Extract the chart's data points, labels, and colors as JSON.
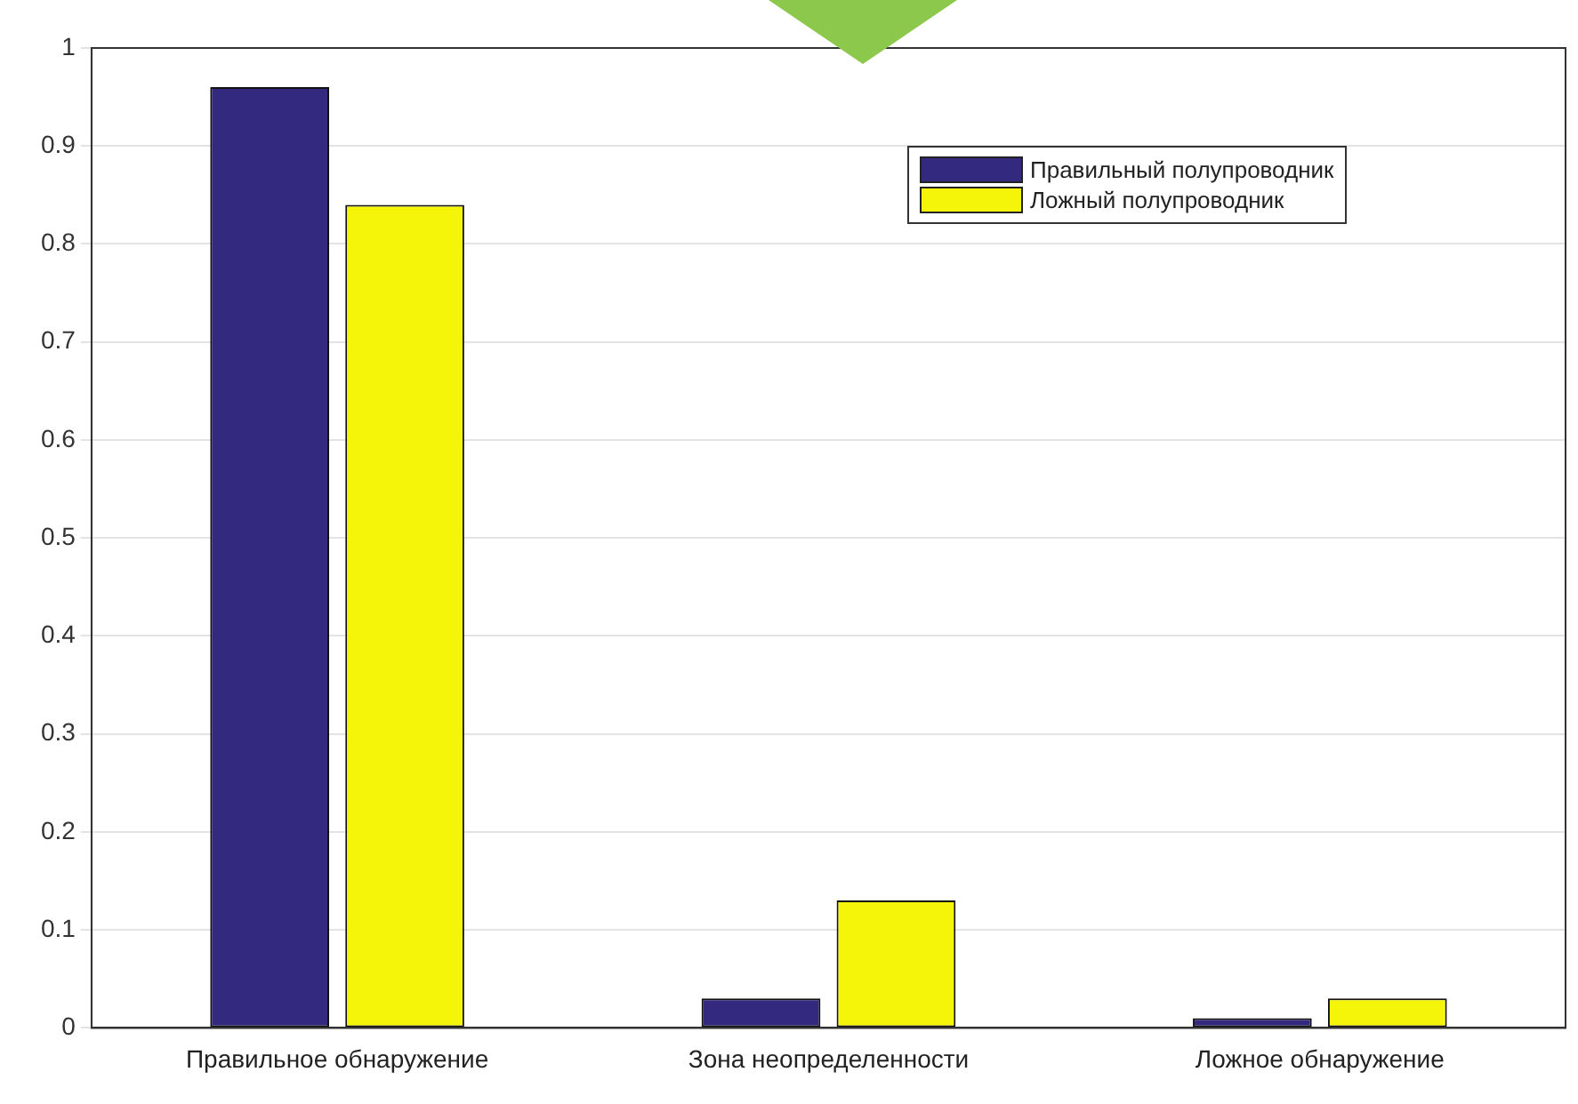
{
  "chart_data": {
    "type": "bar",
    "categories": [
      "Правильное обнаружение",
      "Зона неопределенности",
      "Ложное обнаружение"
    ],
    "series": [
      {
        "name": "Правильный полупроводник",
        "color": "#332a80",
        "values": [
          0.96,
          0.03,
          0.01
        ]
      },
      {
        "name": "Ложный полупроводник",
        "color": "#f5f50a",
        "values": [
          0.84,
          0.13,
          0.03
        ]
      }
    ],
    "ylim": [
      0,
      1
    ],
    "yticks": [
      0,
      0.1,
      0.2,
      0.3,
      0.4,
      0.5,
      0.6,
      0.7,
      0.8,
      0.9,
      1
    ],
    "grid": "y",
    "legend": "top right"
  }
}
